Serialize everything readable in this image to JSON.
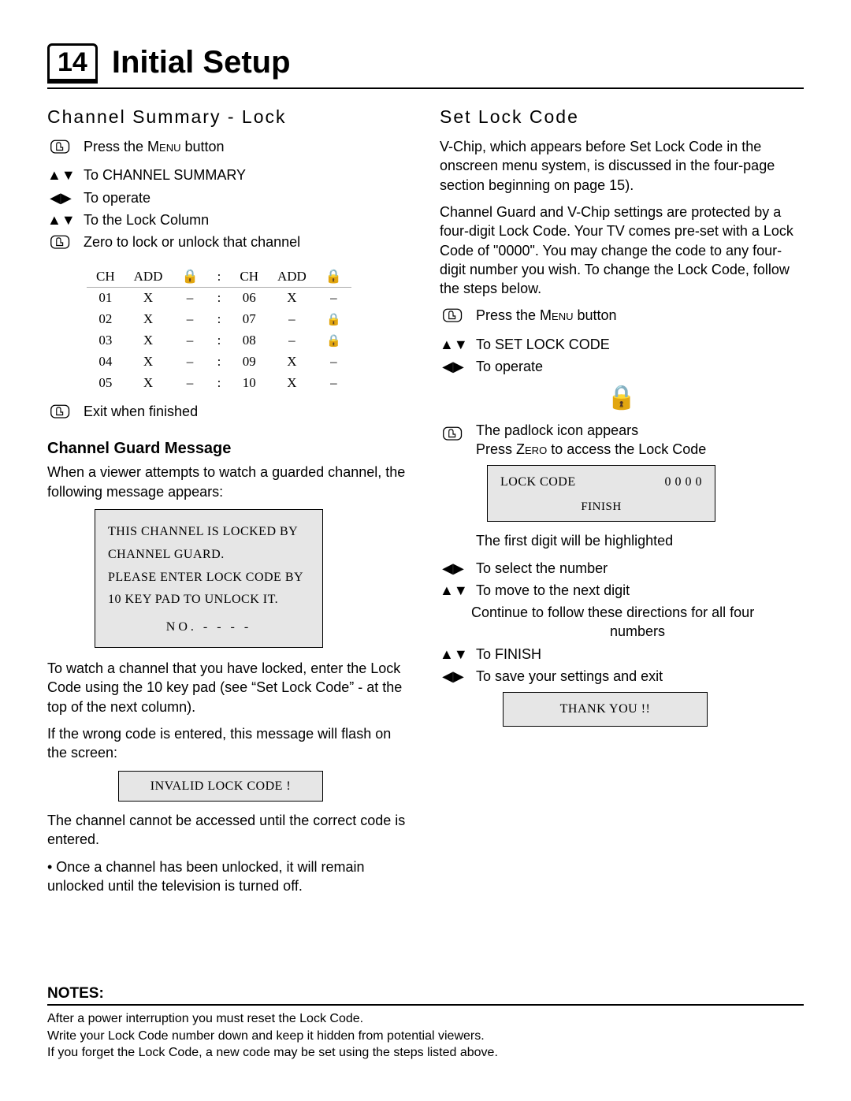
{
  "header": {
    "page_number": "14",
    "title": "Initial Setup"
  },
  "left": {
    "heading": "Channel Summary - Lock",
    "steps": [
      {
        "icon": "hand",
        "text_pre": "Press the ",
        "smallcaps": "Menu",
        "text_post": " button"
      },
      {
        "icon": "updown",
        "text": "To CHANNEL SUMMARY"
      },
      {
        "icon": "leftright",
        "text": "To operate"
      },
      {
        "icon": "updown",
        "text": "To the Lock Column"
      },
      {
        "icon": "hand",
        "text": "Zero to lock or unlock that channel"
      }
    ],
    "table": {
      "headers": [
        "CH",
        "ADD",
        "lock",
        ":",
        "CH",
        "ADD",
        "lock"
      ],
      "rows": [
        [
          "01",
          "X",
          "–",
          ":",
          "06",
          "X",
          "–"
        ],
        [
          "02",
          "X",
          "–",
          ":",
          "07",
          "–",
          "lock"
        ],
        [
          "03",
          "X",
          "–",
          ":",
          "08",
          "–",
          "lock"
        ],
        [
          "04",
          "X",
          "–",
          ":",
          "09",
          "X",
          "–"
        ],
        [
          "05",
          "X",
          "–",
          ":",
          "10",
          "X",
          "–"
        ]
      ]
    },
    "exit_step": {
      "icon": "hand",
      "text": "Exit when finished"
    },
    "guard_heading": "Channel Guard Message",
    "guard_intro": "When a viewer attempts to watch a guarded channel, the following message appears:",
    "guard_box": {
      "l1": "THIS CHANNEL IS LOCKED BY",
      "l2": "CHANNEL GUARD.",
      "l3": "PLEASE ENTER LOCK CODE BY",
      "l4": "10 KEY PAD TO UNLOCK IT.",
      "no": "NO. - - - -"
    },
    "p_after_box": "To watch a channel that you have locked, enter the Lock Code using the 10 key pad (see “Set Lock Code” - at the top of the next column).",
    "p_wrong": "If the wrong code is entered, this message will flash on the screen:",
    "invalid_box": "INVALID LOCK CODE !",
    "p_cannot": "The channel cannot be accessed until the correct code is entered.",
    "bullet": "• Once a channel has been unlocked, it will remain unlocked until the television is turned off."
  },
  "right": {
    "heading": "Set Lock Code",
    "p1": "V-Chip, which appears before Set Lock Code in the onscreen menu system, is discussed in the four-page section beginning on page 15).",
    "p2": "Channel Guard and V-Chip settings are protected by a four-digit Lock Code. Your TV comes pre-set with a Lock Code of \"0000\". You may change the code to any four-digit number you wish. To change the Lock Code, follow the steps below.",
    "steps1": [
      {
        "icon": "hand",
        "text_pre": "Press the ",
        "smallcaps": "Menu",
        "text_post": " button"
      },
      {
        "icon": "updown",
        "text": "To SET LOCK CODE"
      },
      {
        "icon": "leftright",
        "text": "To operate"
      }
    ],
    "padlock_line": "The padlock icon appears",
    "press_zero": {
      "pre": "Press ",
      "sc": "Zero",
      "post": " to access the Lock Code"
    },
    "lock_box": {
      "label": "LOCK CODE",
      "value": "0 0 0 0",
      "finish": "FINISH"
    },
    "first_digit": "The first digit will be highlighted",
    "steps2": [
      {
        "icon": "leftright",
        "text": "To select the number"
      },
      {
        "icon": "updown",
        "text": "To move to the next digit"
      }
    ],
    "continue_line1": "Continue to follow these directions for all four",
    "continue_line2": "numbers",
    "steps3": [
      {
        "icon": "updown",
        "text": "To FINISH"
      },
      {
        "icon": "leftright",
        "text": "To save your settings and exit"
      }
    ],
    "thankyou": "THANK YOU !!"
  },
  "notes": {
    "heading": "NOTES:",
    "l1": "After a power interruption you must reset the Lock Code.",
    "l2": "Write your Lock Code number down and keep it hidden from potential viewers.",
    "l3": "If you forget the Lock Code, a new code may be set using the steps listed above."
  },
  "glyphs": {
    "updown": "▲▼",
    "leftright": "◀▶",
    "lock": "🔒"
  }
}
